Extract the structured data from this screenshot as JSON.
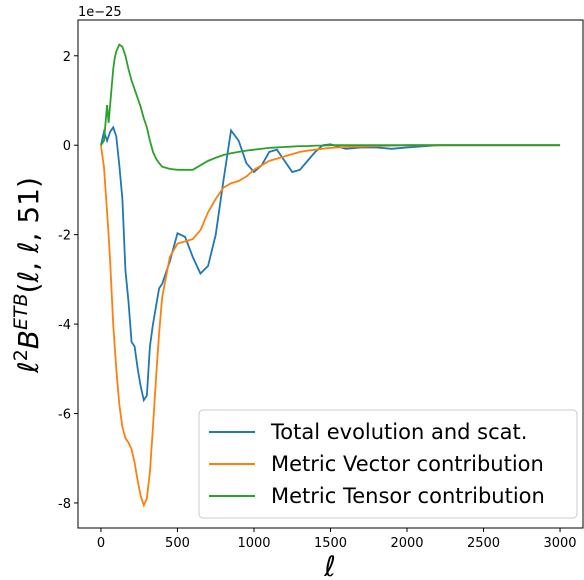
{
  "chart_data": {
    "type": "line",
    "offset_text": "1e−25",
    "xlabel": "ℓ",
    "ylabel_parts": [
      "ℓ",
      "2",
      "B",
      "ETB",
      "(ℓ, ℓ, 51)"
    ],
    "x": [
      0,
      20,
      40,
      50,
      60,
      70,
      80,
      90,
      100,
      120,
      140,
      160,
      180,
      200,
      220,
      240,
      260,
      280,
      300,
      320,
      340,
      360,
      380,
      400,
      450,
      500,
      550,
      600,
      650,
      700,
      750,
      800,
      850,
      900,
      950,
      1000,
      1050,
      1100,
      1150,
      1200,
      1250,
      1300,
      1350,
      1400,
      1450,
      1500,
      1600,
      1700,
      1800,
      1900,
      2000,
      2200,
      2500,
      3000
    ],
    "series": [
      {
        "name": "Total evolution and scat.",
        "color": "#1f77b4",
        "values": [
          0,
          0.3,
          0.1,
          0.2,
          0.3,
          0.35,
          0.4,
          0.3,
          0.2,
          -0.45,
          -1.2,
          -2.8,
          -3.5,
          -4.4,
          -4.5,
          -5.0,
          -5.4,
          -5.7,
          -5.6,
          -4.5,
          -4.0,
          -3.6,
          -3.2,
          -3.1,
          -2.6,
          -1.97,
          -2.05,
          -2.5,
          -2.87,
          -2.7,
          -2.0,
          -0.8,
          0.33,
          0.1,
          -0.4,
          -0.6,
          -0.45,
          -0.15,
          -0.1,
          -0.35,
          -0.6,
          -0.55,
          -0.35,
          -0.15,
          0.0,
          0.02,
          -0.08,
          -0.05,
          -0.05,
          -0.08,
          -0.05,
          0,
          0,
          0
        ]
      },
      {
        "name": "Metric Vector contribution",
        "color": "#ff7f0e",
        "values": [
          0,
          -0.5,
          -1.5,
          -2.0,
          -2.6,
          -3.3,
          -4.0,
          -4.5,
          -5.0,
          -5.8,
          -6.3,
          -6.55,
          -6.65,
          -6.8,
          -7.1,
          -7.5,
          -7.85,
          -8.05,
          -7.9,
          -7.3,
          -6.3,
          -5.2,
          -4.2,
          -3.4,
          -2.5,
          -2.2,
          -2.15,
          -2.1,
          -1.9,
          -1.5,
          -1.2,
          -0.95,
          -0.85,
          -0.8,
          -0.7,
          -0.55,
          -0.45,
          -0.35,
          -0.3,
          -0.25,
          -0.2,
          -0.15,
          -0.12,
          -0.1,
          -0.08,
          -0.06,
          -0.04,
          -0.03,
          -0.02,
          -0.01,
          0,
          0,
          0,
          0
        ]
      },
      {
        "name": "Metric Tensor contribution",
        "color": "#2ca02c",
        "values": [
          0,
          0.1,
          0.9,
          0.5,
          0.9,
          1.3,
          1.7,
          1.95,
          2.1,
          2.25,
          2.2,
          2.0,
          1.7,
          1.45,
          1.25,
          1.05,
          0.85,
          0.6,
          0.4,
          0.1,
          -0.15,
          -0.3,
          -0.4,
          -0.48,
          -0.53,
          -0.55,
          -0.55,
          -0.55,
          -0.45,
          -0.35,
          -0.28,
          -0.22,
          -0.18,
          -0.15,
          -0.12,
          -0.1,
          -0.08,
          -0.06,
          -0.05,
          -0.04,
          -0.03,
          -0.02,
          -0.02,
          -0.01,
          -0.01,
          0,
          0,
          0,
          0,
          0,
          0,
          0,
          0,
          0
        ]
      }
    ],
    "xlim": [
      -150,
      3150
    ],
    "xticks": [
      0,
      500,
      1000,
      1500,
      2000,
      2500,
      3000
    ],
    "ylim": [
      -8.56,
      2.8
    ],
    "yticks": [
      -8,
      -6,
      -4,
      -2,
      0,
      2
    ],
    "grid": false,
    "legend": "lower right"
  }
}
